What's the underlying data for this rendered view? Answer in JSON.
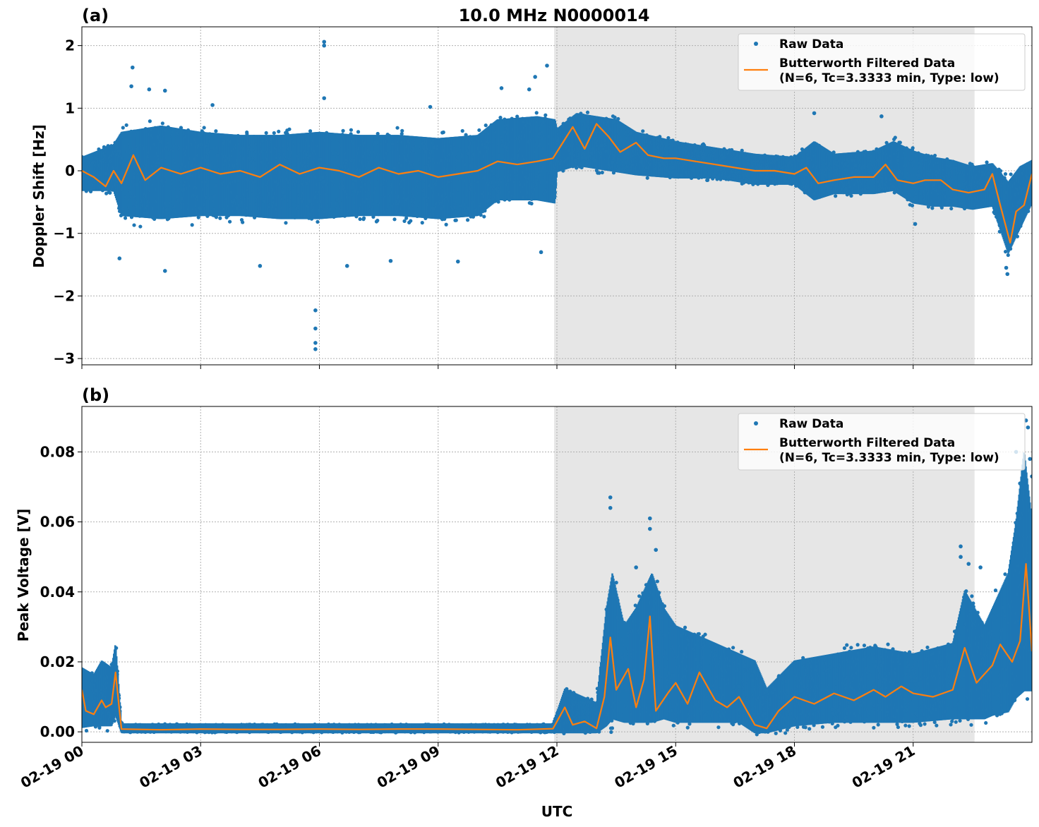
{
  "figure": {
    "title": "10.0 MHz N0000014",
    "xlabel": "UTC"
  },
  "chart_data": [
    {
      "type": "scatter",
      "panel_label": "(a)",
      "ylabel": "Doppler Shift [Hz]",
      "xlim_hours": [
        0,
        24
      ],
      "ylim": [
        -3.1,
        2.3
      ],
      "yticks": [
        2,
        1,
        0,
        -1,
        -2,
        -3
      ],
      "ytick_labels": [
        "2",
        "1",
        "0",
        "−1",
        "−2",
        "−3"
      ],
      "grid": true,
      "legend_placement": "top-right",
      "shaded_region_hours": [
        11.93,
        22.55
      ],
      "series": [
        {
          "name": "Raw Data",
          "color": "#1f77b4",
          "style": "dots",
          "envelope": {
            "x_hours": [
              0,
              0.8,
              1.0,
              2.0,
              3.0,
              4.0,
              5.0,
              6.0,
              7.0,
              8.0,
              9.0,
              10.0,
              10.5,
              11.5,
              11.95,
              12.0,
              12.5,
              13.0,
              13.5,
              14.0,
              15.0,
              16.0,
              17.0,
              18.0,
              18.5,
              19.0,
              20.0,
              20.5,
              21.0,
              21.5,
              22.0,
              22.5,
              23.0,
              23.4,
              23.7,
              24.0
            ],
            "upper": [
              0.2,
              0.4,
              0.6,
              0.7,
              0.6,
              0.55,
              0.55,
              0.6,
              0.55,
              0.55,
              0.5,
              0.55,
              0.8,
              0.85,
              0.8,
              0.65,
              0.9,
              0.85,
              0.8,
              0.6,
              0.45,
              0.35,
              0.25,
              0.2,
              0.45,
              0.25,
              0.3,
              0.45,
              0.3,
              0.2,
              0.15,
              0.05,
              0.1,
              -0.2,
              0.05,
              0.15
            ],
            "lower": [
              -0.3,
              -0.3,
              -0.7,
              -0.75,
              -0.7,
              -0.7,
              -0.75,
              -0.75,
              -0.7,
              -0.7,
              -0.75,
              -0.7,
              -0.45,
              -0.45,
              -0.5,
              0.0,
              0.1,
              0.05,
              0.0,
              -0.05,
              -0.1,
              -0.1,
              -0.2,
              -0.2,
              -0.45,
              -0.35,
              -0.35,
              -0.3,
              -0.5,
              -0.55,
              -0.55,
              -0.6,
              -0.55,
              -1.3,
              -0.9,
              -0.5
            ]
          },
          "outliers": [
            {
              "x_hours": 1.28,
              "y": 1.65
            },
            {
              "x_hours": 1.25,
              "y": 1.35
            },
            {
              "x_hours": 1.7,
              "y": 1.3
            },
            {
              "x_hours": 2.1,
              "y": 1.28
            },
            {
              "x_hours": 2.1,
              "y": -1.6
            },
            {
              "x_hours": 0.95,
              "y": -1.4
            },
            {
              "x_hours": 3.3,
              "y": 1.05
            },
            {
              "x_hours": 4.5,
              "y": -1.52
            },
            {
              "x_hours": 5.9,
              "y": -2.23
            },
            {
              "x_hours": 5.9,
              "y": -2.52
            },
            {
              "x_hours": 5.9,
              "y": -2.75
            },
            {
              "x_hours": 5.9,
              "y": -2.85
            },
            {
              "x_hours": 6.12,
              "y": 2.06
            },
            {
              "x_hours": 6.12,
              "y": 2.0
            },
            {
              "x_hours": 6.12,
              "y": 1.16
            },
            {
              "x_hours": 6.7,
              "y": -1.52
            },
            {
              "x_hours": 7.8,
              "y": -1.44
            },
            {
              "x_hours": 8.8,
              "y": 1.02
            },
            {
              "x_hours": 9.5,
              "y": -1.45
            },
            {
              "x_hours": 10.6,
              "y": 1.32
            },
            {
              "x_hours": 11.3,
              "y": 1.3
            },
            {
              "x_hours": 11.45,
              "y": 1.5
            },
            {
              "x_hours": 11.75,
              "y": 1.68
            },
            {
              "x_hours": 11.6,
              "y": -1.3
            },
            {
              "x_hours": 18.5,
              "y": 0.92
            },
            {
              "x_hours": 20.2,
              "y": 0.87
            },
            {
              "x_hours": 21.05,
              "y": -0.85
            },
            {
              "x_hours": 23.35,
              "y": -1.55
            },
            {
              "x_hours": 23.38,
              "y": -1.65
            }
          ]
        },
        {
          "name": "Butterworth Filtered Data\n(N=6, Tc=3.3333 min, Type: low)",
          "color": "#ff7f0e",
          "style": "line",
          "x_hours": [
            0,
            0.3,
            0.6,
            0.8,
            1.0,
            1.3,
            1.6,
            2.0,
            2.5,
            3.0,
            3.5,
            4.0,
            4.5,
            5.0,
            5.5,
            6.0,
            6.5,
            7.0,
            7.5,
            8.0,
            8.5,
            9.0,
            9.5,
            10.0,
            10.5,
            11.0,
            11.5,
            11.9,
            12.1,
            12.4,
            12.7,
            13.0,
            13.3,
            13.6,
            14.0,
            14.3,
            14.7,
            15.0,
            15.5,
            16.0,
            16.5,
            17.0,
            17.5,
            18.0,
            18.3,
            18.6,
            19.0,
            19.5,
            20.0,
            20.3,
            20.6,
            21.0,
            21.3,
            21.7,
            22.0,
            22.4,
            22.8,
            23.0,
            23.2,
            23.45,
            23.6,
            23.8,
            24.0
          ],
          "y": [
            0.0,
            -0.1,
            -0.25,
            0.0,
            -0.2,
            0.25,
            -0.15,
            0.05,
            -0.05,
            0.05,
            -0.05,
            0.0,
            -0.1,
            0.1,
            -0.05,
            0.05,
            0.0,
            -0.1,
            0.05,
            -0.05,
            0.0,
            -0.1,
            -0.05,
            0.0,
            0.15,
            0.1,
            0.15,
            0.2,
            0.4,
            0.7,
            0.35,
            0.75,
            0.55,
            0.3,
            0.45,
            0.25,
            0.2,
            0.2,
            0.15,
            0.1,
            0.05,
            0.0,
            0.0,
            -0.05,
            0.05,
            -0.2,
            -0.15,
            -0.1,
            -0.1,
            0.1,
            -0.15,
            -0.2,
            -0.15,
            -0.15,
            -0.3,
            -0.35,
            -0.3,
            -0.05,
            -0.55,
            -1.15,
            -0.65,
            -0.55,
            -0.05
          ]
        }
      ]
    },
    {
      "type": "scatter",
      "panel_label": "(b)",
      "ylabel": "Peak Voltage [V]",
      "xlim_hours": [
        0,
        24
      ],
      "ylim": [
        -0.003,
        0.093
      ],
      "yticks": [
        0.0,
        0.02,
        0.04,
        0.06,
        0.08
      ],
      "ytick_labels": [
        "0.00",
        "0.02",
        "0.04",
        "0.06",
        "0.08"
      ],
      "grid": true,
      "legend_placement": "top-right",
      "shaded_region_hours": [
        11.93,
        22.55
      ],
      "series": [
        {
          "name": "Raw Data",
          "color": "#1f77b4",
          "style": "dots",
          "envelope": {
            "x_hours": [
              0,
              0.3,
              0.5,
              0.75,
              0.85,
              1.0,
              3.0,
              6.0,
              9.0,
              11.0,
              11.9,
              12.2,
              13.0,
              13.25,
              13.4,
              13.7,
              14.0,
              14.4,
              14.7,
              15.0,
              16.0,
              16.6,
              17.0,
              17.3,
              18.0,
              19.0,
              20.0,
              21.0,
              22.0,
              22.3,
              22.8,
              23.0,
              23.4,
              23.6,
              23.8,
              24.0
            ],
            "upper": [
              0.018,
              0.016,
              0.02,
              0.018,
              0.025,
              0.002,
              0.002,
              0.002,
              0.002,
              0.002,
              0.002,
              0.012,
              0.008,
              0.035,
              0.045,
              0.03,
              0.035,
              0.045,
              0.035,
              0.03,
              0.025,
              0.022,
              0.02,
              0.012,
              0.02,
              0.022,
              0.024,
              0.022,
              0.025,
              0.04,
              0.03,
              0.035,
              0.045,
              0.06,
              0.08,
              0.06
            ],
            "lower": [
              0.0015,
              0.002,
              0.002,
              0.002,
              0.005,
              0.0,
              0.0,
              0.0,
              0.0,
              0.0,
              0.0,
              0.0,
              0.0,
              0.002,
              0.004,
              0.003,
              0.003,
              0.003,
              0.004,
              0.003,
              0.003,
              0.003,
              0.0,
              0.0,
              0.002,
              0.003,
              0.003,
              0.003,
              0.004,
              0.004,
              0.004,
              0.005,
              0.006,
              0.01,
              0.012,
              0.012
            ]
          },
          "outliers": [
            {
              "x_hours": 13.35,
              "y": 0.067
            },
            {
              "x_hours": 13.35,
              "y": 0.064
            },
            {
              "x_hours": 14.35,
              "y": 0.061
            },
            {
              "x_hours": 14.35,
              "y": 0.058
            },
            {
              "x_hours": 14.0,
              "y": 0.047
            },
            {
              "x_hours": 14.5,
              "y": 0.052
            },
            {
              "x_hours": 22.2,
              "y": 0.053
            },
            {
              "x_hours": 22.2,
              "y": 0.05
            },
            {
              "x_hours": 22.4,
              "y": 0.048
            },
            {
              "x_hours": 22.7,
              "y": 0.047
            },
            {
              "x_hours": 23.6,
              "y": 0.08
            },
            {
              "x_hours": 23.7,
              "y": 0.071
            },
            {
              "x_hours": 23.7,
              "y": 0.061
            },
            {
              "x_hours": 23.85,
              "y": 0.089
            },
            {
              "x_hours": 23.9,
              "y": 0.087
            },
            {
              "x_hours": 23.95,
              "y": 0.078
            },
            {
              "x_hours": 24.0,
              "y": 0.073
            }
          ]
        },
        {
          "name": "Butterworth Filtered Data\n(N=6, Tc=3.3333 min, Type: low)",
          "color": "#ff7f0e",
          "style": "line",
          "x_hours": [
            0,
            0.1,
            0.3,
            0.5,
            0.6,
            0.75,
            0.85,
            0.95,
            1.0,
            2.0,
            3.0,
            4.0,
            5.0,
            6.0,
            7.0,
            8.0,
            9.0,
            10.0,
            11.0,
            11.9,
            12.2,
            12.4,
            12.7,
            13.0,
            13.2,
            13.35,
            13.5,
            13.8,
            14.0,
            14.2,
            14.35,
            14.5,
            14.8,
            15.0,
            15.3,
            15.6,
            16.0,
            16.3,
            16.6,
            17.0,
            17.3,
            17.6,
            18.0,
            18.5,
            19.0,
            19.5,
            20.0,
            20.3,
            20.7,
            21.0,
            21.5,
            22.0,
            22.3,
            22.6,
            23.0,
            23.2,
            23.5,
            23.7,
            23.85,
            24.0
          ],
          "y": [
            0.012,
            0.006,
            0.005,
            0.009,
            0.007,
            0.008,
            0.017,
            0.006,
            0.0008,
            0.0006,
            0.0008,
            0.0007,
            0.0007,
            0.0008,
            0.0007,
            0.0008,
            0.0008,
            0.0007,
            0.0006,
            0.0009,
            0.007,
            0.002,
            0.003,
            0.001,
            0.01,
            0.027,
            0.012,
            0.018,
            0.007,
            0.015,
            0.033,
            0.006,
            0.011,
            0.014,
            0.008,
            0.017,
            0.009,
            0.007,
            0.01,
            0.002,
            0.001,
            0.006,
            0.01,
            0.008,
            0.011,
            0.009,
            0.012,
            0.01,
            0.013,
            0.011,
            0.01,
            0.012,
            0.024,
            0.014,
            0.019,
            0.025,
            0.02,
            0.026,
            0.048,
            0.023
          ]
        }
      ]
    }
  ],
  "xticks": {
    "hours": [
      0,
      3,
      6,
      9,
      12,
      15,
      18,
      21
    ],
    "labels": [
      "02-19 00",
      "02-19 03",
      "02-19 06",
      "02-19 09",
      "02-19 12",
      "02-19 15",
      "02-19 18",
      "02-19 21"
    ]
  },
  "legend": {
    "raw_label": "Raw Data",
    "filtered_line1": "Butterworth Filtered Data",
    "filtered_line2": "(N=6, Tc=3.3333 min, Type: low)"
  }
}
